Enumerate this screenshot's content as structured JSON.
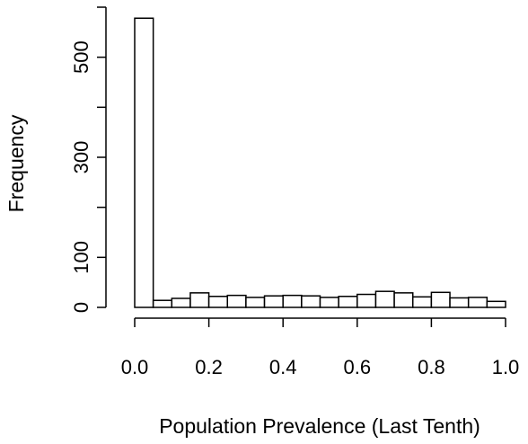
{
  "chart_data": {
    "type": "bar",
    "subtype": "histogram",
    "title": "",
    "xlabel": "Population Prevalence (Last Tenth)",
    "ylabel": "Frequency",
    "xlim": [
      0.0,
      1.0
    ],
    "ylim": [
      0,
      600
    ],
    "x_ticks": [
      "0.0",
      "0.2",
      "0.4",
      "0.6",
      "0.8",
      "1.0"
    ],
    "y_ticks": [
      "0",
      "100",
      "300",
      "500"
    ],
    "bin_width": 0.05,
    "bins": [
      {
        "start": 0.0,
        "end": 0.05,
        "value": 578
      },
      {
        "start": 0.05,
        "end": 0.1,
        "value": 14
      },
      {
        "start": 0.1,
        "end": 0.15,
        "value": 18
      },
      {
        "start": 0.15,
        "end": 0.2,
        "value": 29
      },
      {
        "start": 0.2,
        "end": 0.25,
        "value": 22
      },
      {
        "start": 0.25,
        "end": 0.3,
        "value": 24
      },
      {
        "start": 0.3,
        "end": 0.35,
        "value": 20
      },
      {
        "start": 0.35,
        "end": 0.4,
        "value": 23
      },
      {
        "start": 0.4,
        "end": 0.45,
        "value": 24
      },
      {
        "start": 0.45,
        "end": 0.5,
        "value": 23
      },
      {
        "start": 0.5,
        "end": 0.55,
        "value": 20
      },
      {
        "start": 0.55,
        "end": 0.6,
        "value": 22
      },
      {
        "start": 0.6,
        "end": 0.65,
        "value": 26
      },
      {
        "start": 0.65,
        "end": 0.7,
        "value": 32
      },
      {
        "start": 0.7,
        "end": 0.75,
        "value": 29
      },
      {
        "start": 0.75,
        "end": 0.8,
        "value": 21
      },
      {
        "start": 0.8,
        "end": 0.85,
        "value": 30
      },
      {
        "start": 0.85,
        "end": 0.9,
        "value": 19
      },
      {
        "start": 0.9,
        "end": 0.95,
        "value": 20
      },
      {
        "start": 0.95,
        "end": 1.0,
        "value": 12
      }
    ],
    "bar_fill": "#ffffff",
    "bar_stroke": "#000000",
    "grid": false,
    "legend": "none"
  }
}
